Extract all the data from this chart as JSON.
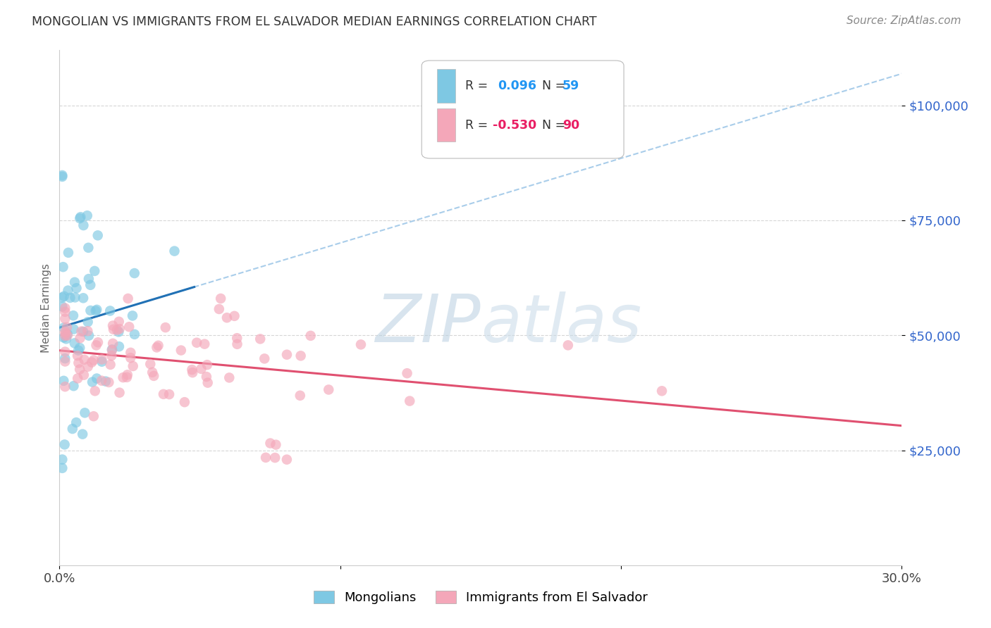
{
  "title": "MONGOLIAN VS IMMIGRANTS FROM EL SALVADOR MEDIAN EARNINGS CORRELATION CHART",
  "source": "Source: ZipAtlas.com",
  "ylabel": "Median Earnings",
  "xlim": [
    0.0,
    0.3
  ],
  "ylim": [
    0,
    112000
  ],
  "yticks": [
    25000,
    50000,
    75000,
    100000
  ],
  "ytick_labels": [
    "$25,000",
    "$50,000",
    "$75,000",
    "$100,000"
  ],
  "background_color": "#ffffff",
  "grid_color": "#cccccc",
  "watermark_zip": "ZIP",
  "watermark_atlas": "atlas",
  "watermark_color": "#c8d8e8",
  "r1": 0.096,
  "n1": 59,
  "r2": -0.53,
  "n2": 90,
  "blue_color": "#7ec8e3",
  "pink_color": "#f4a7b9",
  "blue_line_color": "#2171b5",
  "pink_line_color": "#e05070",
  "blue_dashed_color": "#a0c8e8",
  "tick_label_color": "#3366cc",
  "axis_label_color": "#666666"
}
